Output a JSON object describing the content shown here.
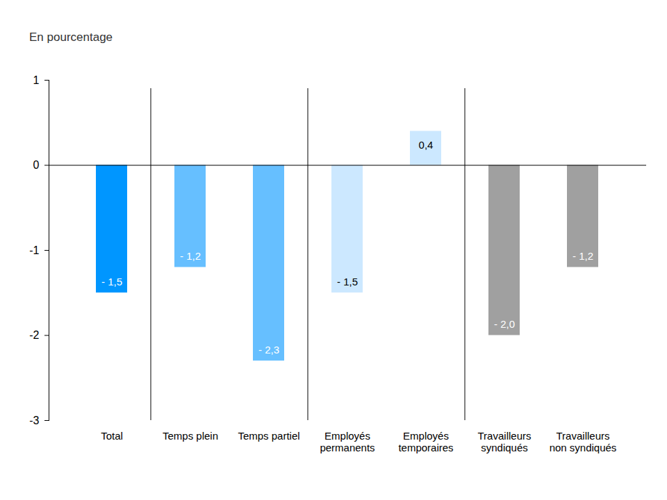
{
  "chart_data": {
    "type": "bar",
    "subtitle": "En pourcentage",
    "categories": [
      "Total",
      "Temps plein",
      "Temps partiel",
      "Employés\npermanents",
      "Employés\ntemporaires",
      "Travailleurs\nsyndiqués",
      "Travailleurs\nnon syndiqués"
    ],
    "values": [
      -1.5,
      -1.2,
      -2.3,
      -1.5,
      0.4,
      -2.0,
      -1.2
    ],
    "value_labels": [
      "- 1,5",
      "- 1,2",
      "- 2,3",
      "- 1,5",
      "0,4",
      "- 2,0",
      "- 1,2"
    ],
    "colors": [
      "#0096ff",
      "#66bfff",
      "#66bfff",
      "#cce8ff",
      "#cce8ff",
      "#a0a0a0",
      "#a0a0a0"
    ],
    "ylim": [
      -3,
      1
    ],
    "yticks": [
      -3,
      -2,
      -1,
      0,
      1
    ],
    "grid": false,
    "data_labels": true
  }
}
